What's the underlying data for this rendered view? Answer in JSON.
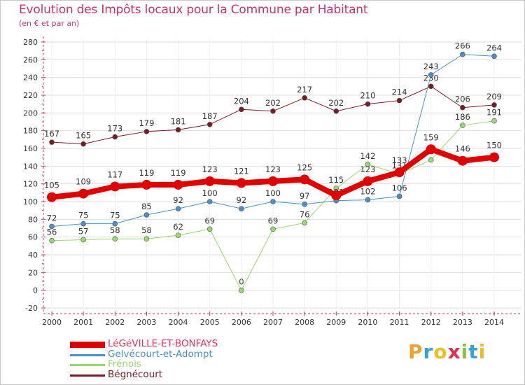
{
  "header": {
    "title": "Evolution des Impôts locaux pour la Commune par Habitant",
    "subtitle": "(en € et par an)"
  },
  "colors": {
    "title": "#c8336d",
    "grid": "#dddddd",
    "axis": "#c8336d",
    "text": "#444444"
  },
  "logo": {
    "letters": [
      "P",
      "r",
      "o",
      "x",
      "i",
      "t",
      "i"
    ],
    "colors": [
      "#f0a030",
      "#3aa0dc",
      "#e8c020",
      "#e03050",
      "#8cc040",
      "#3aa0dc",
      "#e8c020"
    ]
  },
  "chart_data": {
    "type": "line",
    "title": "Evolution des Impôts locaux pour la Commune par Habitant",
    "subtitle": "(en € et par an)",
    "xlabel": "",
    "ylabel": "",
    "x": [
      2000,
      2001,
      2002,
      2003,
      2004,
      2005,
      2006,
      2007,
      2008,
      2009,
      2010,
      2011,
      2012,
      2013,
      2014
    ],
    "ylim": [
      -20,
      280
    ],
    "yticks": [
      -20,
      0,
      20,
      40,
      60,
      80,
      100,
      120,
      140,
      160,
      180,
      200,
      220,
      240,
      260,
      280
    ],
    "grid": true,
    "legend_position": "bottom-left",
    "series": [
      {
        "name": "Bégnécourt",
        "color": "#7a1a22",
        "width": 1,
        "values": [
          167,
          165,
          173,
          179,
          181,
          187,
          204,
          202,
          217,
          202,
          210,
          214,
          230,
          206,
          209
        ],
        "labels": [
          "167",
          "165",
          "173",
          "179",
          "181",
          "187",
          "204",
          "202",
          "217",
          "202",
          "210",
          "214",
          "230",
          "206",
          "209"
        ],
        "label_side": "above"
      },
      {
        "name": "Frénois",
        "color": "#99d870",
        "width": 1,
        "values": [
          56,
          57,
          58,
          58,
          62,
          69,
          0,
          69,
          76,
          115,
          142,
          131,
          147,
          186,
          191
        ],
        "labels": [
          "56",
          "57",
          "58",
          "58",
          "62",
          "69",
          "0",
          "69",
          "76",
          "115",
          "142",
          "131",
          "",
          "186",
          "191"
        ],
        "label_side": "above"
      },
      {
        "name": "Gelvécourt-et-Adompt",
        "color": "#4a90c8",
        "width": 1,
        "values": [
          72,
          75,
          75,
          85,
          92,
          100,
          92,
          100,
          97,
          101,
          102,
          106,
          243,
          266,
          264
        ],
        "labels": [
          "72",
          "75",
          "75",
          "85",
          "92",
          "100",
          "92",
          "100",
          "97",
          "101",
          "102",
          "106",
          "243",
          "266",
          "264"
        ],
        "label_side": "above"
      },
      {
        "name": "LéGéVILLE-ET-BONFAYS",
        "color": "#e00000",
        "width": 8,
        "values": [
          105,
          109,
          117,
          119,
          119,
          123,
          121,
          123,
          125,
          107,
          123,
          133,
          159,
          146,
          150
        ],
        "labels": [
          "105",
          "109",
          "117",
          "119",
          "119",
          "123",
          "121",
          "123",
          "125",
          "",
          "123",
          "133",
          "159",
          "146",
          "150"
        ],
        "label_side": "above"
      }
    ],
    "legend_order": [
      "LéGéVILLE-ET-BONFAYS",
      "Gelvécourt-et-Adompt",
      "Frénois",
      "Bégnécourt"
    ]
  }
}
